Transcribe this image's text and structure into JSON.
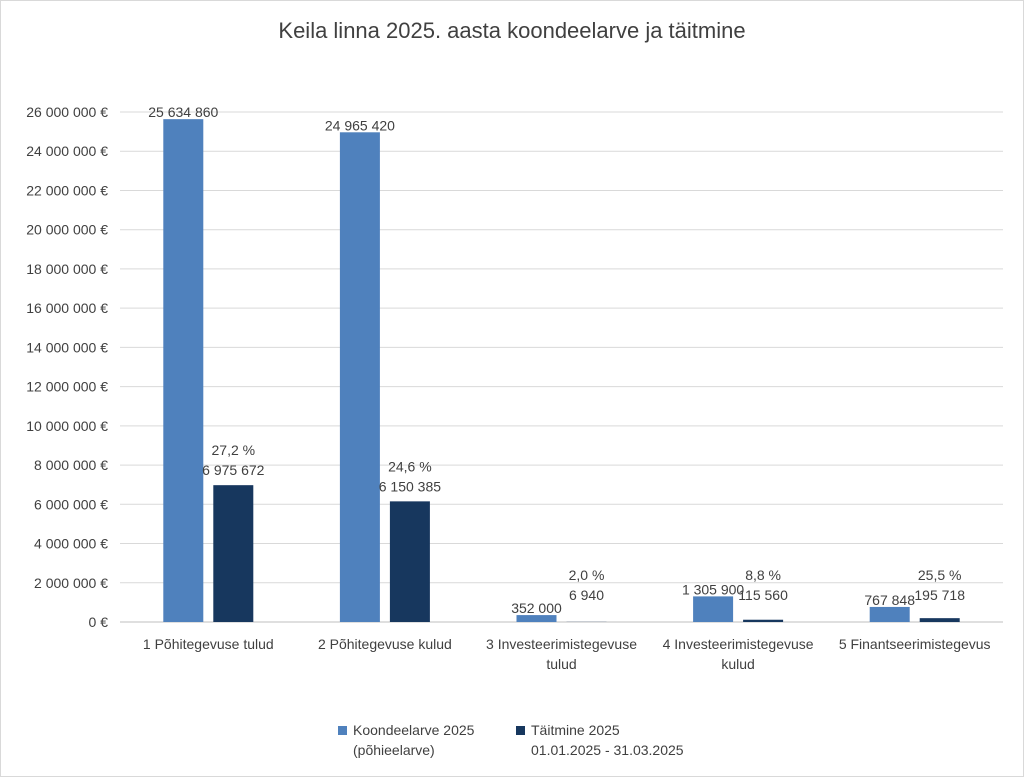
{
  "chart_data": {
    "type": "bar",
    "title": "Keila linna 2025. aasta koondeelarve ja täitmine",
    "categories": [
      [
        "1 Põhitegevuse tulud"
      ],
      [
        "2 Põhitegevuse kulud"
      ],
      [
        "3 Investeerimistegevuse",
        "tulud"
      ],
      [
        "4 Investeerimistegevuse",
        "kulud"
      ],
      [
        "5 Finantseerimistegevus"
      ]
    ],
    "series": [
      {
        "name": "Koondeelarve 2025 (põhieelarve)",
        "legend_lines": [
          "Koondeelarve 2025",
          "(põhieelarve)"
        ],
        "color": "#4f81bd",
        "values": [
          25634860,
          24965420,
          352000,
          1305900,
          767848
        ],
        "labels": [
          "25 634 860",
          "24 965 420",
          "352 000",
          "1 305 900",
          "767 848"
        ]
      },
      {
        "name": "Täitmine 2025 01.01.2025 - 31.03.2025",
        "legend_lines": [
          "Täitmine 2025",
          "01.01.2025 - 31.03.2025"
        ],
        "color": "#17375e",
        "values": [
          6975672,
          6150385,
          6940,
          115560,
          195718
        ],
        "labels": [
          "6 975 672",
          "6 150 385",
          "6 940",
          "115 560",
          "195 718"
        ],
        "percent_labels": [
          "27,2 %",
          "24,6 %",
          "2,0 %",
          "8,8 %",
          "25,5 %"
        ]
      }
    ],
    "ylim": [
      0,
      26000000
    ],
    "ytick_step": 2000000,
    "ytick_labels": [
      "0 €",
      "2 000 000 €",
      "4 000 000 €",
      "6 000 000 €",
      "8 000 000 €",
      "10 000 000 €",
      "12 000 000 €",
      "14 000 000 €",
      "16 000 000 €",
      "18 000 000 €",
      "20 000 000 €",
      "22 000 000 €",
      "24 000 000 €",
      "26 000 000 €"
    ],
    "grid": true,
    "legend_position": "bottom"
  }
}
